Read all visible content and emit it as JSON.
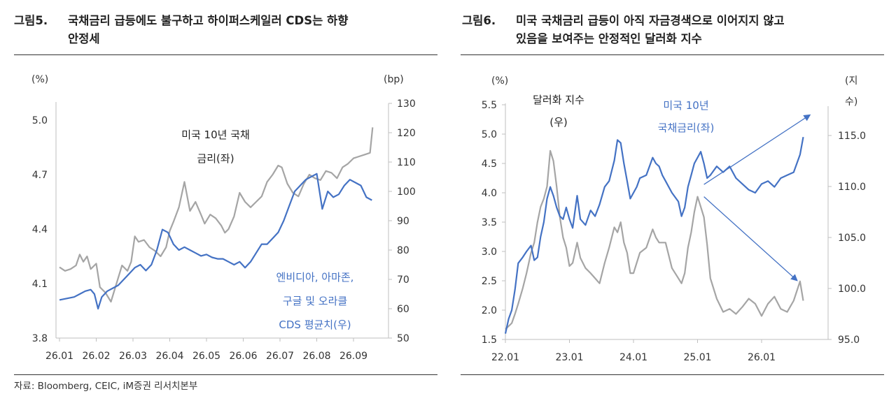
{
  "figure5": {
    "number": "그림5.",
    "title_line1": "국채금리 급등에도 불구하고 하이퍼스케일러 CDS는 하향",
    "title_line2": "안정세"
  },
  "figure6": {
    "number": "그림6.",
    "title_line1": "미국 국채금리 급등이 아직 자금경색으로 이어지지 않고",
    "title_line2": "있음을 보여주는 안정적인 달러화 지수"
  },
  "source": "자료: Bloomberg, CEIC, iM증권 리서치본부",
  "colors": {
    "gray": "#a5a5a5",
    "blue": "#4472c4",
    "blue_text": "#4472c4"
  },
  "chart_data": [
    {
      "type": "line",
      "y_left_unit": "(%)",
      "y_right_unit": "(bp)",
      "y_left_ticks": [
        "3.8",
        "4.1",
        "4.4",
        "4.7",
        "5.0"
      ],
      "y_right_ticks": [
        "50",
        "60",
        "70",
        "80",
        "90",
        "100",
        "110",
        "120",
        "130"
      ],
      "x_ticks": [
        "26.01",
        "26.02",
        "26.03",
        "26.04",
        "26.05",
        "26.06",
        "26.07",
        "26.08",
        "26.09"
      ],
      "ylim_left": [
        3.8,
        5.1
      ],
      "ylim_right": [
        50,
        130
      ],
      "annotations": {
        "gray_line1": "미국 10년 국채",
        "gray_line2": "금리(좌)",
        "blue_line1": "엔비디아, 아마존,",
        "blue_line2": "구글 및 오라클",
        "blue_line3": "CDS 평균치(우)"
      },
      "series": [
        {
          "axis": "left",
          "color": "gray",
          "x": [
            0,
            0.15,
            0.3,
            0.45,
            0.55,
            0.65,
            0.75,
            0.85,
            1.0,
            1.1,
            1.25,
            1.4,
            1.55,
            1.7,
            1.85,
            1.95,
            2.05,
            2.15,
            2.3,
            2.45,
            2.6,
            2.75,
            2.9,
            3.0,
            3.1,
            3.25,
            3.4,
            3.55,
            3.7,
            3.85,
            3.95,
            4.1,
            4.25,
            4.4,
            4.5,
            4.6,
            4.75,
            4.9,
            5.05,
            5.2,
            5.35,
            5.5,
            5.65,
            5.8,
            5.95,
            6.05,
            6.2,
            6.35,
            6.5,
            6.65,
            6.8,
            6.95,
            7.1,
            7.25,
            7.4,
            7.55,
            7.7,
            7.85,
            8.0,
            8.15,
            8.3,
            8.45,
            8.52
          ],
          "values": [
            4.19,
            4.17,
            4.18,
            4.2,
            4.26,
            4.22,
            4.25,
            4.18,
            4.21,
            4.08,
            4.05,
            4.0,
            4.1,
            4.2,
            4.17,
            4.22,
            4.36,
            4.33,
            4.34,
            4.3,
            4.28,
            4.25,
            4.3,
            4.39,
            4.44,
            4.52,
            4.66,
            4.5,
            4.55,
            4.48,
            4.43,
            4.48,
            4.46,
            4.42,
            4.38,
            4.4,
            4.47,
            4.6,
            4.55,
            4.52,
            4.55,
            4.58,
            4.66,
            4.7,
            4.75,
            4.74,
            4.65,
            4.6,
            4.58,
            4.65,
            4.7,
            4.68,
            4.67,
            4.72,
            4.71,
            4.68,
            4.74,
            4.76,
            4.79,
            4.8,
            4.81,
            4.82,
            4.96
          ]
        },
        {
          "axis": "right",
          "color": "blue",
          "x": [
            0,
            0.2,
            0.4,
            0.55,
            0.7,
            0.85,
            0.95,
            1.05,
            1.15,
            1.3,
            1.45,
            1.6,
            1.75,
            1.9,
            2.05,
            2.2,
            2.35,
            2.5,
            2.65,
            2.8,
            2.95,
            3.1,
            3.25,
            3.4,
            3.55,
            3.7,
            3.85,
            4.0,
            4.15,
            4.3,
            4.45,
            4.6,
            4.75,
            4.9,
            5.05,
            5.2,
            5.35,
            5.5,
            5.65,
            5.8,
            5.95,
            6.1,
            6.25,
            6.4,
            6.55,
            6.7,
            6.85,
            7.0,
            7.15,
            7.3,
            7.45,
            7.6,
            7.75,
            7.9,
            8.05,
            8.2,
            8.35,
            8.5
          ],
          "values": [
            63,
            63.5,
            64,
            65,
            66,
            66.5,
            65,
            60,
            64,
            66,
            67,
            68,
            70,
            72,
            74,
            75,
            73,
            75,
            80,
            87,
            86,
            82,
            80,
            81,
            80,
            79,
            78,
            78.5,
            77.5,
            77,
            77,
            76,
            75,
            76,
            74,
            76,
            79,
            82,
            82,
            84,
            86,
            90,
            95,
            100,
            102,
            104,
            105,
            106,
            94,
            100,
            98,
            99,
            102,
            104,
            103,
            102,
            98,
            97
          ]
        }
      ]
    },
    {
      "type": "line",
      "y_left_unit": "(%)",
      "y_right_unit": "(지 수)",
      "y_left_ticks": [
        "1.5",
        "2.0",
        "2.5",
        "3.0",
        "3.5",
        "4.0",
        "4.5",
        "5.0",
        "5.5"
      ],
      "y_right_ticks": [
        "95.0",
        "100.0",
        "105.0",
        "110.0",
        "115.0"
      ],
      "x_ticks": [
        "22.01",
        "23.01",
        "24.01",
        "25.01",
        "26.01"
      ],
      "ylim_left": [
        1.5,
        5.5
      ],
      "ylim_right": [
        95,
        117
      ],
      "annotations": {
        "gray_line1": "달러화 지수",
        "gray_line2": "(우)",
        "blue_line1": "미국 10년",
        "blue_line2": "국채금리(좌)"
      },
      "series": [
        {
          "axis": "left",
          "color": "blue",
          "x": [
            2022.0,
            2022.05,
            2022.1,
            2022.15,
            2022.2,
            2022.27,
            2022.33,
            2022.4,
            2022.45,
            2022.5,
            2022.55,
            2022.6,
            2022.65,
            2022.7,
            2022.75,
            2022.8,
            2022.85,
            2022.9,
            2022.95,
            2023.0,
            2023.05,
            2023.12,
            2023.17,
            2023.25,
            2023.33,
            2023.4,
            2023.47,
            2023.55,
            2023.62,
            2023.7,
            2023.75,
            2023.8,
            2023.85,
            2023.9,
            2023.95,
            2024.0,
            2024.05,
            2024.1,
            2024.2,
            2024.3,
            2024.35,
            2024.4,
            2024.45,
            2024.5,
            2024.6,
            2024.7,
            2024.75,
            2024.8,
            2024.85,
            2024.9,
            2024.95,
            2025.0,
            2025.05,
            2025.1,
            2025.15,
            2025.2,
            2025.3,
            2025.4,
            2025.5,
            2025.6,
            2025.7,
            2025.8,
            2025.9,
            2026.0,
            2026.1,
            2026.2,
            2026.3,
            2026.4,
            2026.5,
            2026.6,
            2026.65
          ],
          "values": [
            1.6,
            1.85,
            2.0,
            2.35,
            2.8,
            2.9,
            3.0,
            3.1,
            2.85,
            2.9,
            3.25,
            3.5,
            3.9,
            4.1,
            3.95,
            3.75,
            3.6,
            3.55,
            3.75,
            3.55,
            3.4,
            3.95,
            3.55,
            3.45,
            3.7,
            3.6,
            3.8,
            4.1,
            4.2,
            4.55,
            4.9,
            4.85,
            4.5,
            4.2,
            3.9,
            4.0,
            4.1,
            4.25,
            4.3,
            4.6,
            4.5,
            4.45,
            4.3,
            4.2,
            4.0,
            3.85,
            3.6,
            3.75,
            4.1,
            4.3,
            4.5,
            4.6,
            4.7,
            4.5,
            4.25,
            4.3,
            4.45,
            4.35,
            4.45,
            4.25,
            4.15,
            4.05,
            4.0,
            4.15,
            4.2,
            4.1,
            4.25,
            4.3,
            4.35,
            4.65,
            4.95
          ]
        },
        {
          "axis": "right",
          "color": "gray",
          "x": [
            2022.0,
            2022.05,
            2022.1,
            2022.15,
            2022.2,
            2022.27,
            2022.33,
            2022.4,
            2022.45,
            2022.5,
            2022.55,
            2022.6,
            2022.65,
            2022.7,
            2022.75,
            2022.8,
            2022.85,
            2022.9,
            2022.95,
            2023.0,
            2023.05,
            2023.12,
            2023.17,
            2023.25,
            2023.33,
            2023.4,
            2023.47,
            2023.55,
            2023.62,
            2023.7,
            2023.75,
            2023.8,
            2023.85,
            2023.9,
            2023.95,
            2024.0,
            2024.1,
            2024.2,
            2024.3,
            2024.35,
            2024.4,
            2024.5,
            2024.6,
            2024.7,
            2024.75,
            2024.8,
            2024.85,
            2024.9,
            2024.95,
            2025.0,
            2025.05,
            2025.1,
            2025.15,
            2025.2,
            2025.3,
            2025.4,
            2025.5,
            2025.6,
            2025.7,
            2025.8,
            2025.9,
            2026.0,
            2026.1,
            2026.2,
            2026.3,
            2026.4,
            2026.5,
            2026.6,
            2026.65
          ],
          "values": [
            96,
            96.3,
            96.6,
            97.5,
            98.5,
            100,
            101.5,
            103.5,
            104.5,
            106.5,
            108,
            108.8,
            110,
            113.5,
            112.5,
            110,
            107,
            105,
            104,
            102.2,
            102.5,
            104.5,
            103,
            102,
            101.5,
            101,
            100.5,
            102.5,
            104,
            106,
            105.5,
            106.5,
            104.5,
            103.5,
            101.5,
            101.5,
            103.5,
            104,
            105.8,
            105,
            104.5,
            104.5,
            102,
            101,
            100.5,
            101.5,
            104,
            105.5,
            107.5,
            109,
            108,
            107,
            104.3,
            101,
            99,
            97.7,
            98,
            97.5,
            98.2,
            99,
            98.5,
            97.3,
            98.5,
            99.2,
            98,
            97.7,
            98.8,
            100.7,
            98.8
          ]
        }
      ],
      "arrows": [
        {
          "from": [
            2025.1,
            110.2
          ],
          "to": [
            2026.75,
            117.0
          ]
        },
        {
          "from": [
            2025.1,
            109.0
          ],
          "to": [
            2026.55,
            100.8
          ]
        }
      ]
    }
  ]
}
